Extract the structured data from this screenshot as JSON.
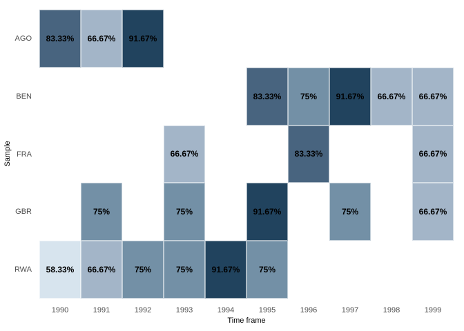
{
  "chart_data": {
    "type": "heatmap",
    "title": "",
    "xlabel": "Time frame",
    "ylabel": "Sample",
    "x_categories": [
      "1990",
      "1991",
      "1992",
      "1993",
      "1994",
      "1995",
      "1996",
      "1997",
      "1998",
      "1999"
    ],
    "y_categories": [
      "AGO",
      "BEN",
      "FRA",
      "GBR",
      "RWA"
    ],
    "grid": false,
    "legend": "none",
    "color_scale": [
      {
        "value": 58.33,
        "color": "#d7e4ee"
      },
      {
        "value": 66.67,
        "color": "#a3b5c8"
      },
      {
        "value": 75,
        "color": "#7390a6"
      },
      {
        "value": 83.33,
        "color": "#48647f"
      },
      {
        "value": 91.67,
        "color": "#21435e"
      }
    ],
    "cells": [
      {
        "row": "AGO",
        "col": "1990",
        "value": 83.33,
        "label": "83.33%"
      },
      {
        "row": "AGO",
        "col": "1991",
        "value": 66.67,
        "label": "66.67%"
      },
      {
        "row": "AGO",
        "col": "1992",
        "value": 91.67,
        "label": "91.67%"
      },
      {
        "row": "BEN",
        "col": "1995",
        "value": 83.33,
        "label": "83.33%"
      },
      {
        "row": "BEN",
        "col": "1996",
        "value": 75,
        "label": "75%"
      },
      {
        "row": "BEN",
        "col": "1997",
        "value": 91.67,
        "label": "91.67%"
      },
      {
        "row": "BEN",
        "col": "1998",
        "value": 66.67,
        "label": "66.67%"
      },
      {
        "row": "BEN",
        "col": "1999",
        "value": 66.67,
        "label": "66.67%"
      },
      {
        "row": "FRA",
        "col": "1993",
        "value": 66.67,
        "label": "66.67%"
      },
      {
        "row": "FRA",
        "col": "1996",
        "value": 83.33,
        "label": "83.33%"
      },
      {
        "row": "FRA",
        "col": "1999",
        "value": 66.67,
        "label": "66.67%"
      },
      {
        "row": "GBR",
        "col": "1991",
        "value": 75,
        "label": "75%"
      },
      {
        "row": "GBR",
        "col": "1993",
        "value": 75,
        "label": "75%"
      },
      {
        "row": "GBR",
        "col": "1995",
        "value": 91.67,
        "label": "91.67%"
      },
      {
        "row": "GBR",
        "col": "1997",
        "value": 75,
        "label": "75%"
      },
      {
        "row": "GBR",
        "col": "1999",
        "value": 66.67,
        "label": "66.67%"
      },
      {
        "row": "RWA",
        "col": "1990",
        "value": 58.33,
        "label": "58.33%"
      },
      {
        "row": "RWA",
        "col": "1991",
        "value": 66.67,
        "label": "66.67%"
      },
      {
        "row": "RWA",
        "col": "1992",
        "value": 75,
        "label": "75%"
      },
      {
        "row": "RWA",
        "col": "1993",
        "value": 75,
        "label": "75%"
      },
      {
        "row": "RWA",
        "col": "1994",
        "value": 91.67,
        "label": "91.67%"
      },
      {
        "row": "RWA",
        "col": "1995",
        "value": 75,
        "label": "75%"
      }
    ]
  }
}
